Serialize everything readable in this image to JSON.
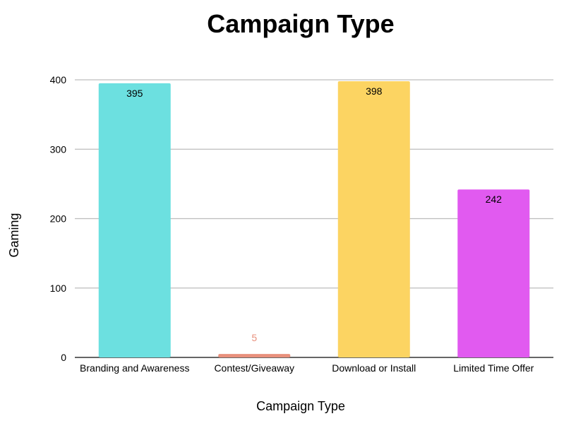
{
  "chart_data": {
    "type": "bar",
    "title": "Campaign Type",
    "xlabel": "Campaign Type",
    "ylabel": "Gaming",
    "categories": [
      "Branding and Awareness",
      "Contest/Giveaway",
      "Download or Install",
      "Limited Time Offer"
    ],
    "values": [
      395,
      5,
      398,
      242
    ],
    "data_labels": [
      "395",
      "5",
      "398",
      "242"
    ],
    "colors": [
      "#6ce0e0",
      "#e8907c",
      "#fcd462",
      "#e15af0"
    ],
    "yticks": [
      0,
      100,
      200,
      300,
      400
    ],
    "ytick_labels": [
      "0",
      "100",
      "200",
      "300",
      "400"
    ],
    "ylim": [
      0,
      400
    ],
    "grid": true,
    "legend": "none"
  }
}
